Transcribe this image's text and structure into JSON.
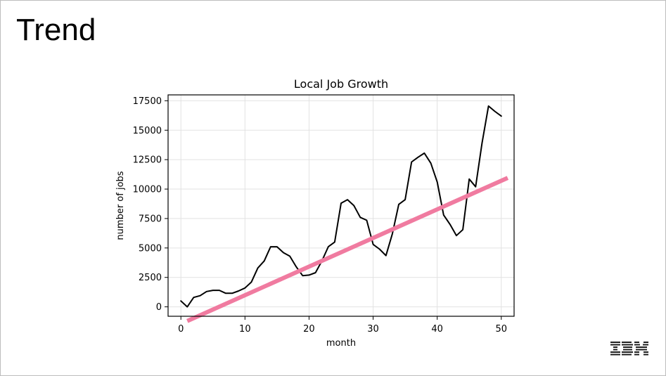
{
  "slide": {
    "title": "Trend",
    "logo_text": "IBM"
  },
  "chart_data": {
    "type": "line",
    "title": "Local Job Growth",
    "xlabel": "month",
    "ylabel": "number of jobs",
    "xlim": [
      -2,
      52
    ],
    "ylim": [
      -800,
      18000
    ],
    "xticks": [
      0,
      10,
      20,
      30,
      40,
      50
    ],
    "yticks": [
      0,
      2500,
      5000,
      7500,
      10000,
      12500,
      15000,
      17500
    ],
    "grid": true,
    "series": [
      {
        "color": "#000000",
        "x": [
          0,
          1,
          2,
          3,
          4,
          5,
          6,
          7,
          8,
          9,
          10,
          11,
          12,
          13,
          14,
          15,
          16,
          17,
          18,
          19,
          20,
          21,
          22,
          23,
          24,
          25,
          26,
          27,
          28,
          29,
          30,
          31,
          32,
          33,
          34,
          35,
          36,
          37,
          38,
          39,
          40,
          41,
          42,
          43,
          44,
          45,
          46,
          47,
          48,
          49,
          50
        ],
        "y": [
          500,
          0,
          800,
          950,
          1300,
          1400,
          1400,
          1150,
          1150,
          1350,
          1600,
          2100,
          3300,
          3900,
          5100,
          5100,
          4600,
          4300,
          3400,
          2650,
          2700,
          2900,
          3900,
          5100,
          5500,
          8800,
          9100,
          8600,
          7600,
          7350,
          5300,
          4900,
          4350,
          6200,
          8700,
          9100,
          12300,
          12700,
          13050,
          12200,
          10600,
          7800,
          7000,
          6050,
          6550,
          10850,
          10200,
          13900,
          17050,
          16600,
          16200
        ]
      },
      {
        "color": "#f07ba0",
        "x": [
          1,
          51
        ],
        "y": [
          -1200,
          10950
        ]
      }
    ]
  }
}
